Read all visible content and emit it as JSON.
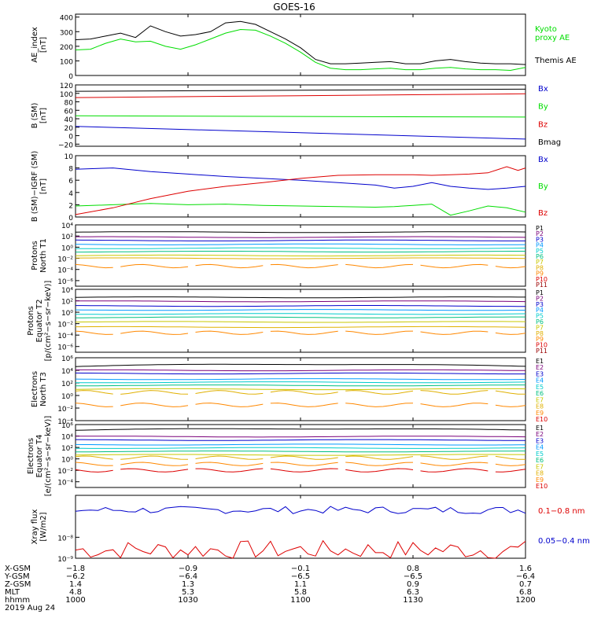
{
  "title": "GOES-16",
  "date": "2019 Aug 24",
  "colors": {
    "black": "#000000",
    "blue": "#0000cc",
    "green": "#00dd00",
    "red": "#dd0000",
    "P1": "#000000",
    "P2": "#7a007a",
    "P3": "#0000cc",
    "P4": "#0099ff",
    "P5": "#00cccc",
    "P6": "#00c080",
    "P7": "#c8c800",
    "P8": "#e0b000",
    "P9": "#ff8800",
    "P10": "#dd0000",
    "P11": "#990000"
  },
  "chart_data": [
    {
      "type": "line",
      "ylabel": "AE_index\n[nT]",
      "ylim": [
        0,
        420
      ],
      "yticks": [
        "0",
        "100",
        "200",
        "300",
        "400"
      ],
      "series": [
        {
          "name": "Kyoto\nproxy AE",
          "color": "#00dd00",
          "x": [
            0,
            4,
            8,
            12,
            16,
            20,
            24,
            28,
            32,
            36,
            40,
            44,
            48,
            52,
            56,
            60,
            64,
            68,
            72,
            76,
            80,
            84,
            88,
            92,
            96,
            100,
            104,
            108,
            112,
            116,
            120
          ],
          "values": [
            175,
            180,
            220,
            250,
            230,
            235,
            200,
            180,
            210,
            250,
            290,
            315,
            310,
            270,
            220,
            160,
            90,
            50,
            40,
            40,
            45,
            50,
            40,
            40,
            50,
            55,
            45,
            40,
            40,
            35,
            55
          ]
        },
        {
          "name": "Themis AE",
          "color": "#000000",
          "x": [
            0,
            4,
            8,
            12,
            16,
            20,
            24,
            28,
            32,
            36,
            40,
            44,
            48,
            52,
            56,
            60,
            64,
            68,
            72,
            76,
            80,
            84,
            88,
            92,
            96,
            100,
            104,
            108,
            112,
            116,
            120
          ],
          "values": [
            245,
            250,
            270,
            290,
            260,
            340,
            300,
            270,
            280,
            300,
            360,
            370,
            350,
            300,
            250,
            190,
            110,
            80,
            80,
            85,
            90,
            95,
            80,
            80,
            100,
            110,
            95,
            85,
            80,
            80,
            75
          ]
        }
      ]
    },
    {
      "type": "line",
      "ylabel": "B (SM)\n[nT]",
      "ylim": [
        -25,
        120
      ],
      "yticks": [
        "−20",
        "0",
        "20",
        "40",
        "60",
        "80",
        "100",
        "120"
      ],
      "series": [
        {
          "name": "Bx",
          "color": "#0000cc",
          "x": [
            0,
            120
          ],
          "values": [
            22,
            -8
          ]
        },
        {
          "name": "By",
          "color": "#00dd00",
          "x": [
            0,
            120
          ],
          "values": [
            47,
            44
          ]
        },
        {
          "name": "Bz",
          "color": "#dd0000",
          "x": [
            0,
            120
          ],
          "values": [
            90,
            99
          ]
        },
        {
          "name": "Bmag",
          "color": "#000000",
          "x": [
            0,
            120
          ],
          "values": [
            105,
            110
          ]
        }
      ]
    },
    {
      "type": "line",
      "ylabel": "B (SM)−IGRF (SM)\n[nT]",
      "ylim": [
        0,
        10
      ],
      "yticks": [
        "0",
        "2",
        "4",
        "6",
        "8",
        "10"
      ],
      "series": [
        {
          "name": "Bx",
          "color": "#0000cc",
          "x": [
            0,
            10,
            20,
            30,
            40,
            50,
            60,
            70,
            80,
            85,
            90,
            95,
            100,
            105,
            110,
            115,
            120
          ],
          "values": [
            7.8,
            8.0,
            7.4,
            7.0,
            6.6,
            6.3,
            6.0,
            5.6,
            5.2,
            4.7,
            5.0,
            5.6,
            5.0,
            4.7,
            4.5,
            4.7,
            5.0
          ]
        },
        {
          "name": "By",
          "color": "#00dd00",
          "x": [
            0,
            10,
            20,
            30,
            40,
            50,
            60,
            70,
            80,
            85,
            90,
            95,
            100,
            105,
            110,
            115,
            120
          ],
          "values": [
            1.8,
            2.0,
            2.2,
            2.0,
            2.1,
            1.9,
            1.8,
            1.7,
            1.6,
            1.7,
            1.9,
            2.1,
            0.3,
            1.0,
            1.8,
            1.5,
            0.8
          ]
        },
        {
          "name": "Bz",
          "color": "#dd0000",
          "x": [
            0,
            10,
            20,
            30,
            40,
            50,
            60,
            70,
            80,
            85,
            90,
            95,
            100,
            105,
            110,
            115,
            118,
            120
          ],
          "values": [
            0.4,
            1.5,
            3.0,
            4.2,
            5.0,
            5.6,
            6.3,
            6.8,
            6.9,
            6.9,
            6.9,
            6.8,
            6.9,
            7.0,
            7.2,
            8.2,
            7.6,
            8.0
          ]
        }
      ]
    },
    {
      "type": "line",
      "scale": "log",
      "ylabel": "Protons\nNorth T1",
      "ylim_exp": [
        -7,
        4
      ],
      "yticks": [
        "10⁻⁶",
        "10⁻⁴",
        "10⁻²",
        "10⁰",
        "10²",
        "10⁴"
      ],
      "series": [
        {
          "name": "P1",
          "level": 2.7
        },
        {
          "name": "P2",
          "level": 1.8
        },
        {
          "name": "P3",
          "level": 1.2
        },
        {
          "name": "P4",
          "level": 0.5
        },
        {
          "name": "P5",
          "level": -0.2
        },
        {
          "name": "P6",
          "level": -0.8
        },
        {
          "name": "P7",
          "level": -1.5
        },
        {
          "name": "P8",
          "level": -2.0
        },
        {
          "name": "P9",
          "level": -3.4
        },
        {
          "name": "P10",
          "level": -99
        },
        {
          "name": "P11",
          "level": -99
        }
      ]
    },
    {
      "type": "line",
      "scale": "log",
      "ylabel": "Protons\nEquator T2\n[p/(cm²−s−sr−keV)]",
      "ylim_exp": [
        -7,
        4
      ],
      "yticks": [
        "10⁻⁶",
        "10⁻⁴",
        "10⁻²",
        "10⁰",
        "10²",
        "10⁴"
      ],
      "series": [
        {
          "name": "P1",
          "level": 2.6
        },
        {
          "name": "P2",
          "level": 1.9
        },
        {
          "name": "P3",
          "level": 1.1
        },
        {
          "name": "P4",
          "level": 0.4
        },
        {
          "name": "P5",
          "level": -0.3
        },
        {
          "name": "P6",
          "level": -0.9
        },
        {
          "name": "P7",
          "level": -1.7
        },
        {
          "name": "P8",
          "level": -2.6
        },
        {
          "name": "P9",
          "level": -3.6
        },
        {
          "name": "P10",
          "level": -99
        },
        {
          "name": "P11",
          "level": -99
        }
      ]
    },
    {
      "type": "line",
      "scale": "log",
      "ylabel": "Electrons\nNorth T3",
      "ylim_exp": [
        -4,
        6
      ],
      "yticks": [
        "10⁻⁴",
        "10⁻²",
        "10⁰",
        "10²",
        "10⁴",
        "10⁶"
      ],
      "series": [
        {
          "name": "E1",
          "level": 4.6
        },
        {
          "name": "E2",
          "level": 4.0
        },
        {
          "name": "E3",
          "level": 3.5
        },
        {
          "name": "E4",
          "level": 2.6
        },
        {
          "name": "E5",
          "level": 2.1
        },
        {
          "name": "E6",
          "level": 1.6
        },
        {
          "name": "E7",
          "level": 1.0
        },
        {
          "name": "E8",
          "level": 0.5
        },
        {
          "name": "E9",
          "level": -1.5
        },
        {
          "name": "E10",
          "level": -99
        }
      ]
    },
    {
      "type": "line",
      "scale": "log",
      "ylabel": "Electrons\nEquator T4\n[e/(cm²−s−sr−keV)]",
      "ylim_exp": [
        -5,
        6
      ],
      "yticks": [
        "10⁻⁴",
        "10⁻²",
        "10⁰",
        "10²",
        "10⁴",
        "10⁶"
      ],
      "series": [
        {
          "name": "E1",
          "level": 5.0
        },
        {
          "name": "E2",
          "level": 3.9
        },
        {
          "name": "E3",
          "level": 3.3
        },
        {
          "name": "E4",
          "level": 2.5
        },
        {
          "name": "E5",
          "level": 1.9
        },
        {
          "name": "E6",
          "level": 1.3
        },
        {
          "name": "E7",
          "level": 0.7
        },
        {
          "name": "E8",
          "level": 0.2
        },
        {
          "name": "E9",
          "level": -0.9
        },
        {
          "name": "E10",
          "level": -2.0
        }
      ]
    },
    {
      "type": "line",
      "scale": "log",
      "ylabel": "Xray flux\n[W/m2]",
      "ylim_exp": [
        -9,
        -6
      ],
      "yticks": [
        "10⁻⁹",
        "10⁻⁸"
      ],
      "series": [
        {
          "name": "0.1−0.8 nm",
          "color": "#dd0000",
          "level": -8.6
        },
        {
          "name": "0.05−0.4 nm",
          "color": "#0000cc",
          "level": -6.7
        }
      ]
    }
  ],
  "x_axis": {
    "row_labels": [
      "X-GSM",
      "Y-GSM",
      "Z-GSM",
      "MLT",
      "hhmm"
    ],
    "ticks": [
      {
        "X-GSM": "−1.8",
        "Y-GSM": "−6.2",
        "Z-GSM": "1.4",
        "MLT": "4.8",
        "hhmm": "1000"
      },
      {
        "X-GSM": "−0.9",
        "Y-GSM": "−6.4",
        "Z-GSM": "1.3",
        "MLT": "5.3",
        "hhmm": "1030"
      },
      {
        "X-GSM": "−0.1",
        "Y-GSM": "−6.5",
        "Z-GSM": "1.1",
        "MLT": "5.8",
        "hhmm": "1100"
      },
      {
        "X-GSM": "0.8",
        "Y-GSM": "−6.5",
        "Z-GSM": "0.9",
        "MLT": "6.3",
        "hhmm": "1130"
      },
      {
        "X-GSM": "1.6",
        "Y-GSM": "−6.4",
        "Z-GSM": "0.7",
        "MLT": "6.8",
        "hhmm": "1200"
      }
    ]
  }
}
